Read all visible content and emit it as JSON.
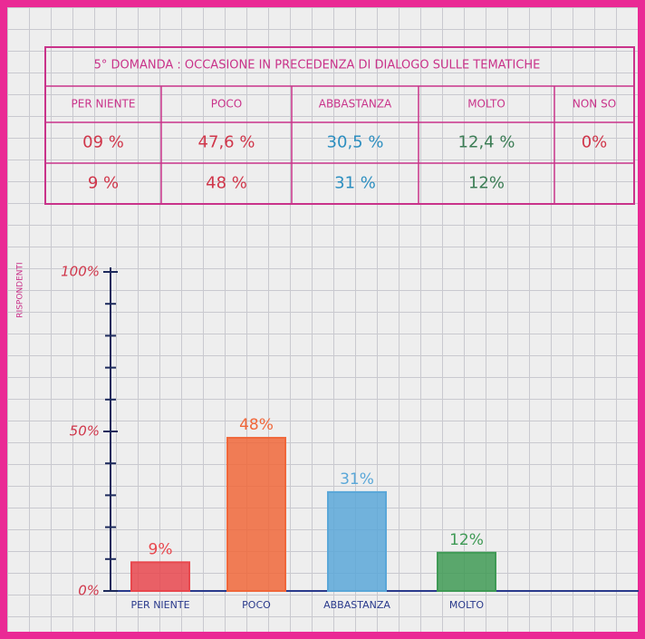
{
  "table": {
    "title": "5° DOMANDA : OCCASIONE IN PRECEDENZA DI DIALOGO SULLE TEMATICHE",
    "columns": [
      "PER NIENTE",
      "POCO",
      "ABBASTANZA",
      "MOLTO",
      "NON SO"
    ],
    "rows": [
      [
        "09 %",
        "47,6 %",
        "30,5 %",
        "12,4 %",
        "0%"
      ],
      [
        "9 %",
        "48 %",
        "31 %",
        "12%"
      ]
    ]
  },
  "chart_data": {
    "type": "bar",
    "y_label": "RISPONDENTI",
    "categories": [
      "PER NIENTE",
      "POCO",
      "ABBASTANZA",
      "MOLTO"
    ],
    "values": [
      9,
      48,
      31,
      12
    ],
    "value_labels": [
      "9%",
      "48%",
      "31%",
      "12%"
    ],
    "colors": [
      "#e8474d",
      "#f0673a",
      "#5aa7d8",
      "#3f9a55"
    ],
    "ylim": [
      0,
      100
    ],
    "yticks": [
      {
        "value": 0,
        "label": "0%"
      },
      {
        "value": 50,
        "label": "50%"
      },
      {
        "value": 100,
        "label": "100%"
      }
    ],
    "minor_yticks": [
      10,
      20,
      30,
      40,
      60,
      70,
      80,
      90
    ]
  }
}
